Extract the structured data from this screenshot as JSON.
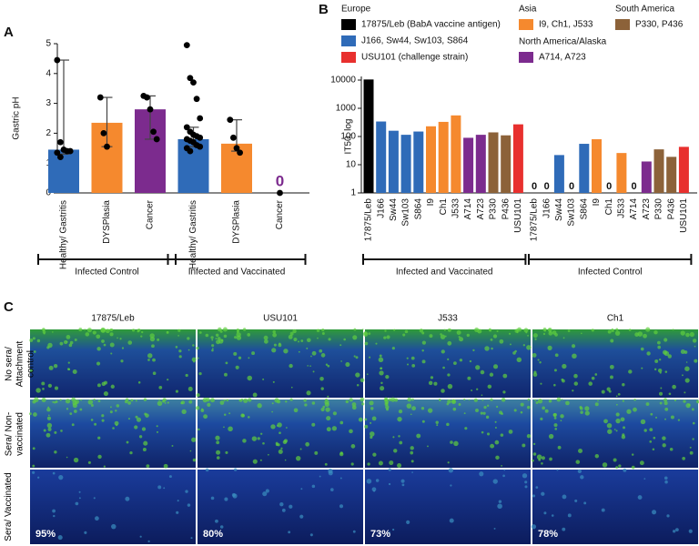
{
  "chart_data": [
    {
      "type": "bar",
      "panel": "A",
      "y_label": "Gastric pH",
      "categories": [
        "Healthy/ Gastritis",
        "DYSPlasia",
        "Cancer",
        "Healthy/ Gastritis",
        "DYSPlasia",
        "Cancer"
      ],
      "colors": [
        "#2f6bb8",
        "#f5892e",
        "#7c2b8e",
        "#2f6bb8",
        "#f5892e",
        "#7c2b8e"
      ],
      "values": [
        1.45,
        2.35,
        2.8,
        1.8,
        1.65,
        0
      ],
      "value_labels": [
        null,
        null,
        null,
        null,
        null,
        "0"
      ],
      "whisker_low": [
        1.3,
        1.55,
        1.8,
        1.55,
        1.4,
        null
      ],
      "whisker_high": [
        4.45,
        3.2,
        3.25,
        2.2,
        2.45,
        null
      ],
      "points": [
        [
          4.45,
          1.7,
          1.45,
          1.4,
          1.4,
          1.35,
          1.2
        ],
        [
          3.2,
          2.0,
          1.55
        ],
        [
          3.25,
          3.2,
          2.8,
          2.05,
          1.8
        ],
        [
          4.95,
          3.85,
          3.7,
          3.15,
          2.5,
          2.2,
          2.05,
          1.95,
          1.9,
          1.85,
          1.8,
          1.75,
          1.7,
          1.6,
          1.55,
          1.5,
          1.4
        ],
        [
          2.45,
          1.85,
          1.5,
          1.35
        ],
        [
          0
        ]
      ],
      "groups": [
        {
          "name": "Infected Control",
          "categories": [
            0,
            2
          ]
        },
        {
          "name": "Infected and Vaccinated",
          "categories": [
            3,
            5
          ]
        }
      ],
      "ylim": [
        0,
        5
      ],
      "yticks": [
        0,
        1,
        2,
        3,
        4,
        5
      ]
    },
    {
      "type": "bar",
      "panel": "B",
      "y_label": "IT50, log",
      "log": true,
      "categories": [
        "17875/Leb",
        "J166",
        "Sw44",
        "Sw103",
        "S864",
        "I9",
        "Ch1",
        "J533",
        "A714",
        "A723",
        "P330",
        "P436",
        "USU101"
      ],
      "colors": [
        "#000000",
        "#2f6bb8",
        "#2f6bb8",
        "#2f6bb8",
        "#2f6bb8",
        "#f5892e",
        "#f5892e",
        "#f5892e",
        "#7c2b8e",
        "#7c2b8e",
        "#8c6239",
        "#8c6239",
        "#e8302e"
      ],
      "series": [
        {
          "name": "Infected and Vaccinated",
          "values": [
            10500,
            340,
            160,
            115,
            150,
            230,
            330,
            560,
            90,
            115,
            140,
            110,
            270
          ],
          "value_labels": [
            null,
            null,
            null,
            null,
            null,
            null,
            null,
            null,
            null,
            null,
            null,
            null,
            null
          ]
        },
        {
          "name": "Infected Control",
          "values": [
            0,
            0,
            22,
            0,
            55,
            80,
            0,
            26,
            0,
            13,
            35,
            19,
            43
          ],
          "value_labels": [
            "0",
            "0",
            null,
            "0",
            null,
            null,
            "0",
            null,
            "0",
            null,
            null,
            null,
            null
          ]
        }
      ],
      "legend": [
        {
          "region": "Europe",
          "entries": [
            {
              "label": "17875/Leb (BabA vaccine antigen)",
              "color": "#000000"
            },
            {
              "label": "J166, Sw44, Sw103, S864",
              "color": "#2f6bb8"
            },
            {
              "label": "USU101 (challenge strain)",
              "color": "#e8302e"
            }
          ]
        },
        {
          "region": "Asia",
          "entries": [
            {
              "label": "I9, Ch1, J533",
              "color": "#f5892e"
            }
          ]
        },
        {
          "region": "North America/Alaska",
          "entries": [
            {
              "label": "A714, A723",
              "color": "#7c2b8e"
            }
          ]
        },
        {
          "region": "South America",
          "entries": [
            {
              "label": "P330, P436",
              "color": "#8c6239"
            }
          ]
        }
      ],
      "ylim": [
        1,
        10000
      ],
      "yticks": [
        1,
        10,
        100,
        1000,
        10000
      ]
    }
  ],
  "micrographs": {
    "panel": "C",
    "columns": [
      "17875/Leb",
      "USU101",
      "J533",
      "Ch1"
    ],
    "rows": [
      "No sera/ Attachment control",
      "Sera/ Non-vaccinated",
      "Sera/ Vaccinated"
    ],
    "percentages": [
      "95%",
      "80%",
      "73%",
      "78%"
    ]
  }
}
